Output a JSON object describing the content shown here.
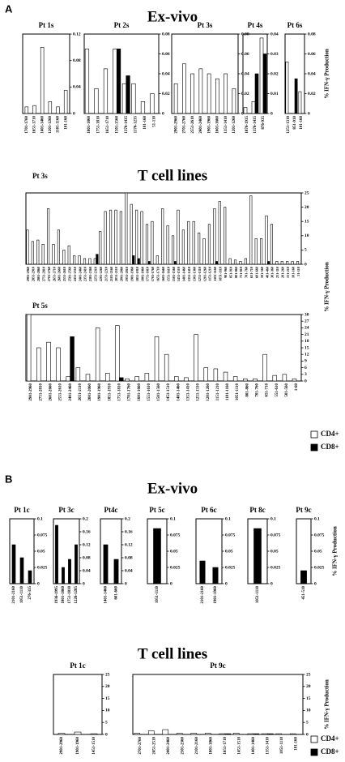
{
  "sections": [
    {
      "label": "A",
      "title": "Ex-vivo"
    },
    {
      "title": "T cell lines"
    },
    {
      "label": "B",
      "title": "Ex-vivo"
    },
    {
      "title": "T cell lines"
    }
  ],
  "chart_data": [
    {
      "type": "bar",
      "title": "Pt 1s",
      "categories": [
        "1701-1760",
        "1651-1710",
        "1401-1460",
        "1201-1260",
        "1101-1160",
        "101-160"
      ],
      "series": [
        {
          "name": "CD4+",
          "color": "#ffffff",
          "values": [
            0.01,
            0.012,
            0.1,
            0.018,
            0.01,
            0.035
          ]
        }
      ],
      "ylim": [
        0,
        0.12
      ],
      "yticks": [
        0,
        0.04,
        0.08,
        0.12
      ]
    },
    {
      "type": "bar",
      "title": "Pt 2s",
      "categories": [
        "1801-1860",
        "1751-1810",
        "1651-1710",
        "1501-1560",
        "1376-1435",
        "1176-1235",
        "101-160",
        "51-110"
      ],
      "series": [
        {
          "name": "CD4+",
          "color": "#ffffff",
          "values": [
            0.065,
            0.025,
            0.045,
            0.065,
            0.03,
            0.03,
            0.012,
            0.02
          ]
        },
        {
          "name": "CD8+",
          "color": "#000000",
          "values": [
            null,
            null,
            null,
            0.065,
            0.038,
            null,
            null,
            null
          ]
        }
      ],
      "ylim": [
        0,
        0.08
      ],
      "yticks": [
        0,
        0.02,
        0.04,
        0.06,
        0.08
      ]
    },
    {
      "type": "bar",
      "title": "Pt 3s",
      "categories": [
        "2901-2960",
        "2701-2760",
        "2551-2610",
        "2401-2460",
        "1901-1960",
        "1601-1660",
        "1351-1410",
        "1201-1260"
      ],
      "series": [
        {
          "name": "CD4+",
          "color": "#ffffff",
          "values": [
            0.03,
            0.05,
            0.04,
            0.045,
            0.04,
            0.035,
            0.04,
            0.025
          ]
        }
      ],
      "ylim": [
        0,
        0.08
      ],
      "yticks": [
        0,
        0.02,
        0.04,
        0.06,
        0.08
      ]
    },
    {
      "type": "bar",
      "title": "Pt 4s",
      "categories": [
        "1876-1935",
        "1376-1435",
        "876-935"
      ],
      "series": [
        {
          "name": "CD4+",
          "color": "#ffffff",
          "values": [
            0.003,
            0.006,
            0.038
          ]
        },
        {
          "name": "CD8+",
          "color": "#000000",
          "values": [
            null,
            0.02,
            0.03
          ]
        }
      ],
      "ylim": [
        0,
        0.04
      ],
      "yticks": [
        0,
        0.01,
        0.02,
        0.03,
        0.04
      ]
    },
    {
      "type": "bar",
      "title": "Pt 6s",
      "categories": [
        "1251-1310",
        "851-910",
        "101-160"
      ],
      "series": [
        {
          "name": "CD4+",
          "color": "#ffffff",
          "values": [
            0.052,
            null,
            0.022
          ]
        },
        {
          "name": "CD8+",
          "color": "#000000",
          "values": [
            null,
            0.035,
            null
          ]
        }
      ],
      "ylim": [
        0,
        0.08
      ],
      "yticks": [
        0,
        0.02,
        0.04,
        0.06,
        0.08
      ],
      "y_label": "% IFN-γ Production"
    },
    {
      "type": "bar",
      "title": "Pt 3s",
      "categories": [
        "2901-2960",
        "2851-2910",
        "2801-2860",
        "2751-2810",
        "2701-2760",
        "2651-2710",
        "2601-2660",
        "2551-2610",
        "2501-2560",
        "2451-2510",
        "2401-2460",
        "2351-2410",
        "2301-2360",
        "2251-2310",
        "2201-2260",
        "2151-2210",
        "2101-2160",
        "2051-2110",
        "2001-2060",
        "1951-2010",
        "1901-1960",
        "1851-1910",
        "1801-1860",
        "1751-1810",
        "1701-1760",
        "1651-1710",
        "1601-1660",
        "1551-1610",
        "1501-1560",
        "1451-1510",
        "1401-1460",
        "1351-1410",
        "1301-1360",
        "1251-1310",
        "1201-1260",
        "1151-1210",
        "1101-1160",
        "1051-1110",
        "901-960",
        "851-910",
        "801-860",
        "751-810",
        "701-760",
        "651-710",
        "601-660",
        "501-560",
        "401-460",
        "301-360",
        "251-310",
        "201-260",
        "151-210",
        "101-160",
        "51-110"
      ],
      "series": [
        {
          "name": "CD4+",
          "color": "#ffffff",
          "values": [
            12,
            8,
            8.5,
            7,
            19.5,
            7,
            12,
            5,
            6.5,
            3,
            3,
            2,
            2,
            2,
            11.5,
            18.5,
            19,
            19,
            18.5,
            25,
            21,
            19,
            18.5,
            14,
            15,
            3,
            19.5,
            13.5,
            10,
            19,
            12,
            15,
            15,
            11,
            9,
            14,
            19.5,
            22,
            20,
            2,
            1.5,
            1,
            2,
            24,
            9,
            9,
            17,
            14,
            1,
            1,
            1,
            1,
            1
          ]
        },
        {
          "name": "CD8+",
          "color": "#000000",
          "values": [
            null,
            null,
            null,
            null,
            null,
            null,
            null,
            null,
            null,
            null,
            null,
            null,
            null,
            3.5,
            null,
            null,
            null,
            null,
            null,
            null,
            3,
            2,
            null,
            1,
            null,
            null,
            null,
            null,
            1,
            null,
            null,
            null,
            null,
            null,
            null,
            null,
            1,
            null,
            null,
            null,
            null,
            null,
            null,
            null,
            null,
            null,
            1,
            null,
            null,
            null,
            null,
            null,
            null
          ]
        }
      ],
      "ylim": [
        0,
        25
      ],
      "yticks": [
        0,
        5,
        10,
        15,
        20,
        25
      ],
      "y_label": "% IFN-γ Production"
    },
    {
      "type": "bar",
      "title": "Pt 5s",
      "categories": [
        "2901-2960",
        "2751-2810",
        "2601-2660",
        "2551-2610",
        "2401-2460",
        "2051-2110",
        "2001-2060",
        "1901-1960",
        "1851-1910",
        "1751-1810",
        "1701-1760",
        "1601-1660",
        "1551-1610",
        "1501-1560",
        "1451-1510",
        "1401-1460",
        "1351-1410",
        "1251-1310",
        "1201-1260",
        "1151-1210",
        "1101-1160",
        "1051-1110",
        "801-860",
        "701-760",
        "651-710",
        "551-610",
        "501-560",
        "1-60"
      ],
      "series": [
        {
          "name": "CD4+",
          "color": "#ffffff",
          "values": [
            30,
            15,
            17.5,
            15,
            2,
            6,
            3,
            24,
            3.5,
            25,
            1,
            2,
            3.5,
            20,
            12,
            2,
            1.5,
            21,
            6,
            5.5,
            4,
            2,
            1,
            1,
            12,
            2.5,
            3,
            1
          ]
        },
        {
          "name": "CD8+",
          "color": "#000000",
          "values": [
            null,
            null,
            null,
            null,
            20,
            null,
            null,
            null,
            null,
            1.5,
            null,
            null,
            null,
            null,
            null,
            null,
            null,
            null,
            null,
            null,
            null,
            null,
            null,
            null,
            null,
            null,
            null,
            null
          ]
        }
      ],
      "ylim": [
        0,
        30
      ],
      "yticks": [
        0,
        3,
        6,
        9,
        12,
        15,
        18,
        21,
        24,
        27,
        30
      ]
    },
    {
      "type": "bar",
      "title": "Pt 1c",
      "categories": [
        "2101-2160",
        "1051-1110",
        "276-335"
      ],
      "series": [
        {
          "name": "CD8+",
          "color": "#000000",
          "values": [
            0.06,
            0.04,
            0.02
          ]
        }
      ],
      "ylim": [
        0,
        0.1
      ],
      "yticks": [
        0,
        0.025,
        0.05,
        0.075,
        0.1
      ]
    },
    {
      "type": "bar",
      "title": "Pt 3c",
      "categories": [
        "1936-1995",
        "1801-1860",
        "1751-1810",
        "1226-1285"
      ],
      "series": [
        {
          "name": "CD8+",
          "color": "#000000",
          "values": [
            0.18,
            0.05,
            0.075,
            0.12
          ]
        }
      ],
      "ylim": [
        0,
        0.2
      ],
      "yticks": [
        0,
        0.04,
        0.08,
        0.12,
        0.16,
        0.2
      ]
    },
    {
      "type": "bar",
      "title": "Pt4c",
      "categories": [
        "1401-1460",
        "601-660"
      ],
      "series": [
        {
          "name": "CD8+",
          "color": "#000000",
          "values": [
            0.12,
            0.075
          ]
        }
      ],
      "ylim": [
        0,
        0.2
      ],
      "yticks": [
        0,
        0.04,
        0.08,
        0.12,
        0.16,
        0.2
      ]
    },
    {
      "type": "bar",
      "title": "Pt 5c",
      "categories": [
        "1051-1110"
      ],
      "series": [
        {
          "name": "CD8+",
          "color": "#000000",
          "values": [
            0.085
          ]
        }
      ],
      "ylim": [
        0,
        0.1
      ],
      "yticks": [
        0,
        0.025,
        0.05,
        0.075,
        0.1
      ]
    },
    {
      "type": "bar",
      "title": "Pt 6c",
      "categories": [
        "2101-2160",
        "1901-1960"
      ],
      "series": [
        {
          "name": "CD8+",
          "color": "#000000",
          "values": [
            0.035,
            0.025
          ]
        }
      ],
      "ylim": [
        0,
        0.1
      ],
      "yticks": [
        0,
        0.025,
        0.05,
        0.075,
        0.1
      ]
    },
    {
      "type": "bar",
      "title": "Pt 8c",
      "categories": [
        "1051-1110"
      ],
      "series": [
        {
          "name": "CD8+",
          "color": "#000000",
          "values": [
            0.085
          ]
        }
      ],
      "ylim": [
        0,
        0.1
      ],
      "yticks": [
        0,
        0.025,
        0.05,
        0.075,
        0.1
      ]
    },
    {
      "type": "bar",
      "title": "Pt 9c",
      "categories": [
        "451-510"
      ],
      "series": [
        {
          "name": "CD8+",
          "color": "#000000",
          "values": [
            0.02
          ]
        }
      ],
      "ylim": [
        0,
        0.1
      ],
      "yticks": [
        0,
        0.025,
        0.05,
        0.075,
        0.1
      ],
      "y_label": "% IFN-γ Production"
    },
    {
      "type": "bar",
      "title": "Pt 1c",
      "categories": [
        "2901-2960",
        "1901-1960",
        "1451-1510"
      ],
      "series": [
        {
          "name": "CD4+",
          "color": "#ffffff",
          "values": [
            0.5,
            1,
            0.3
          ]
        }
      ],
      "ylim": [
        0,
        25
      ],
      "yticks": [
        0,
        5,
        10,
        15,
        20,
        25
      ]
    },
    {
      "type": "bar",
      "title": "Pt 9c",
      "categories": [
        "2701-2760",
        "2451-2510",
        "2401-2460",
        "2301-2360",
        "2101-2160",
        "1801-1860",
        "1651-1710",
        "1451-1510",
        "1401-1460",
        "1351-1410",
        "1051-1110",
        "101-160"
      ],
      "series": [
        {
          "name": "CD4+",
          "color": "#ffffff",
          "values": [
            0.5,
            1.5,
            2,
            0.5,
            0.5,
            0.5,
            0.3,
            0.5,
            0.3,
            0.3,
            0.3,
            0.3
          ]
        },
        {
          "name": "CD8+",
          "color": "#000000",
          "values": [
            null,
            null,
            null,
            null,
            null,
            null,
            0.3,
            null,
            0.3,
            0.3,
            null,
            null
          ]
        }
      ],
      "ylim": [
        0,
        25
      ],
      "yticks": [
        0,
        5,
        10,
        15,
        20,
        25
      ],
      "y_label": "% IFN-γ Production"
    }
  ]
}
